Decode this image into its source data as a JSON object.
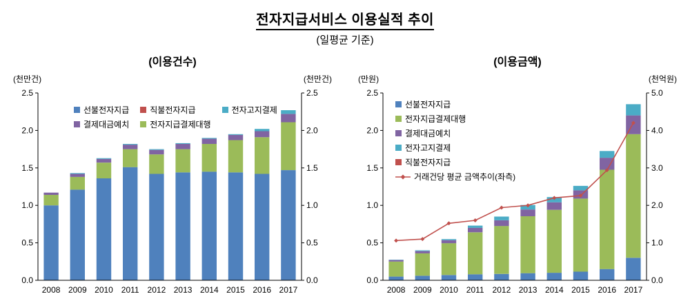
{
  "page": {
    "title": "전자지급서비스 이용실적 추이",
    "subtitle": "(일평균 기준)"
  },
  "chart_data": [
    {
      "type": "bar",
      "stacked": true,
      "title": "(이용건수)",
      "categories": [
        "2008",
        "2009",
        "2010",
        "2011",
        "2012",
        "2013",
        "2014",
        "2015",
        "2016",
        "2017"
      ],
      "axes": {
        "left": {
          "unit": "(천만건)",
          "min": 0.0,
          "max": 2.5,
          "step": 0.5
        },
        "right": {
          "unit": "(천만건)",
          "min": 0.0,
          "max": 2.5,
          "step": 0.5
        }
      },
      "bars_axis": "left",
      "grid": false,
      "legend_position": "inside-top-left",
      "legend_columns": 2,
      "legend_order": [
        0,
        2,
        4,
        1,
        3
      ],
      "series": [
        {
          "name": "선불전자지급",
          "type": "bar",
          "color": "#4F81BD",
          "values": [
            1.0,
            1.21,
            1.36,
            1.51,
            1.42,
            1.44,
            1.45,
            1.44,
            1.42,
            1.47
          ]
        },
        {
          "name": "전자지급결제대행",
          "type": "bar",
          "color": "#9BBB59",
          "values": [
            0.14,
            0.17,
            0.21,
            0.24,
            0.26,
            0.31,
            0.37,
            0.43,
            0.49,
            0.64
          ]
        },
        {
          "name": "결제대금예치",
          "type": "bar",
          "color": "#8064A2",
          "values": [
            0.03,
            0.04,
            0.05,
            0.06,
            0.06,
            0.07,
            0.07,
            0.07,
            0.08,
            0.11
          ]
        },
        {
          "name": "전자고지결제",
          "type": "bar",
          "color": "#4BACC6",
          "values": [
            0.0,
            0.01,
            0.01,
            0.01,
            0.01,
            0.01,
            0.01,
            0.01,
            0.03,
            0.05
          ]
        },
        {
          "name": "직불전자지급",
          "type": "bar",
          "color": "#C0504D",
          "values": [
            0.0,
            0.0,
            0.0,
            0.0,
            0.0,
            0.0,
            0.0,
            0.0,
            0.0,
            0.0
          ]
        }
      ]
    },
    {
      "type": "bar+line",
      "stacked": true,
      "title": "(이용금액)",
      "categories": [
        "2008",
        "2009",
        "2010",
        "2011",
        "2012",
        "2013",
        "2014",
        "2015",
        "2016",
        "2017"
      ],
      "axes": {
        "left": {
          "unit": "(만원)",
          "min": 0.0,
          "max": 2.5,
          "step": 0.5
        },
        "right": {
          "unit": "(천억원)",
          "min": 0.0,
          "max": 5.0,
          "step": 1.0
        }
      },
      "bars_axis": "right",
      "grid": false,
      "legend_position": "inside-top-left",
      "legend_columns": 1,
      "legend_order": [
        0,
        1,
        2,
        3,
        4,
        5
      ],
      "series": [
        {
          "name": "선불전자지급",
          "type": "bar",
          "color": "#4F81BD",
          "values": [
            0.1,
            0.12,
            0.14,
            0.16,
            0.17,
            0.19,
            0.2,
            0.23,
            0.3,
            0.6
          ]
        },
        {
          "name": "전자지급결제대행",
          "type": "bar",
          "color": "#9BBB59",
          "values": [
            0.4,
            0.6,
            0.85,
            1.12,
            1.28,
            1.52,
            1.68,
            1.95,
            2.65,
            3.3
          ]
        },
        {
          "name": "결제대금예치",
          "type": "bar",
          "color": "#8064A2",
          "values": [
            0.04,
            0.06,
            0.08,
            0.12,
            0.15,
            0.18,
            0.2,
            0.22,
            0.32,
            0.5
          ]
        },
        {
          "name": "전자고지결제",
          "type": "bar",
          "color": "#4BACC6",
          "values": [
            0.01,
            0.02,
            0.03,
            0.06,
            0.1,
            0.12,
            0.14,
            0.12,
            0.18,
            0.3
          ]
        },
        {
          "name": "직불전자지급",
          "type": "bar",
          "color": "#C0504D",
          "values": [
            0.0,
            0.0,
            0.0,
            0.0,
            0.0,
            0.0,
            0.0,
            0.0,
            0.0,
            0.0
          ]
        },
        {
          "name": "거래건당 평균 금액추이(좌측)",
          "type": "line",
          "axis": "left",
          "color": "#C0504D",
          "values": [
            0.53,
            0.55,
            0.76,
            0.8,
            0.97,
            1.0,
            1.1,
            1.13,
            1.47,
            2.1
          ]
        }
      ]
    }
  ]
}
